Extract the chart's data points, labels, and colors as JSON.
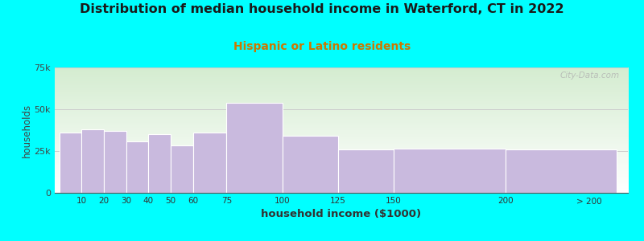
{
  "title": "Distribution of median household income in Waterford, CT in 2022",
  "subtitle": "Hispanic or Latino residents",
  "xlabel": "household income ($1000)",
  "ylabel": "households",
  "background_outer": "#00FFFF",
  "bar_color": "#C9BADE",
  "watermark": "City-Data.com",
  "subtitle_color": "#CC7700",
  "title_fontsize": 11.5,
  "subtitle_fontsize": 10,
  "xlabel_fontsize": 9.5,
  "ylabel_fontsize": 8.5,
  "ytick_labels": [
    "0",
    "25k",
    "50k",
    "75k"
  ],
  "ytick_values": [
    0,
    25000,
    50000,
    75000
  ],
  "ylim": [
    0,
    75000
  ],
  "bin_edges": [
    0,
    10,
    20,
    30,
    40,
    50,
    60,
    75,
    100,
    125,
    150,
    200,
    250
  ],
  "bin_labels": [
    "10",
    "20",
    "30",
    "40",
    "50",
    "60",
    "75",
    "100",
    "125",
    "150",
    "200",
    "> 200"
  ],
  "values": [
    36000,
    38000,
    37000,
    31000,
    35000,
    28500,
    36000,
    54000,
    34000,
    26000,
    26500,
    26000
  ],
  "grid_color": "#CCCCCC",
  "bg_top_color": "#D4ECD0",
  "bg_bottom_color": "#FFFFFF"
}
